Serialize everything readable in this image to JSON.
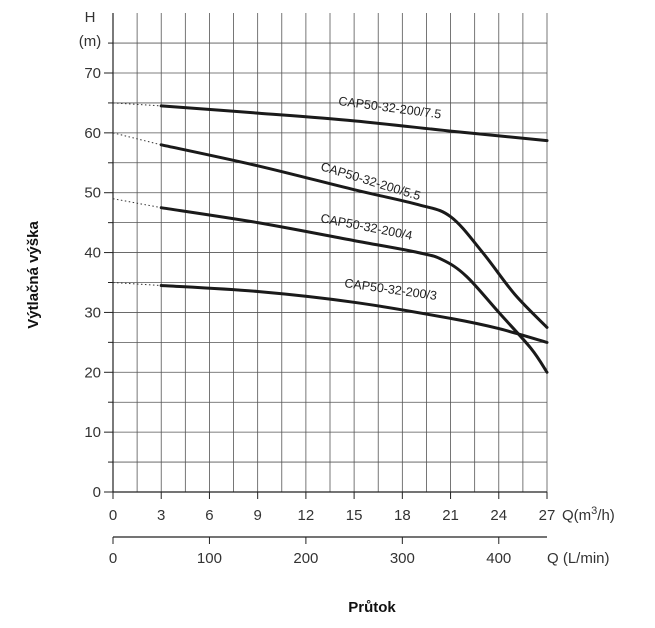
{
  "chart_data": {
    "type": "line",
    "y_unit_label": [
      "H",
      "(m)"
    ],
    "ylabel": "Výtlačná výška",
    "xlabel": "Průtok",
    "x_unit_label": "Q(m³/h)",
    "x2_unit_label": "Q (L/min)",
    "xlim": [
      0,
      27
    ],
    "ylim": [
      0,
      70
    ],
    "x_ticks": [
      "0",
      "3",
      "6",
      "9",
      "12",
      "15",
      "18",
      "21",
      "24",
      "27"
    ],
    "y_ticks": [
      "0",
      "10",
      "20",
      "30",
      "40",
      "50",
      "60",
      "70"
    ],
    "x2_ticks": [
      "0",
      "100",
      "200",
      "300",
      "400"
    ],
    "grid": true,
    "colors": {
      "curve": "#1a1a1a",
      "grid": "#555555",
      "text": "#333333"
    },
    "series": [
      {
        "name": "CAP50-32-200/7.5",
        "shutoff_head": 65,
        "points": [
          [
            3,
            64.5
          ],
          [
            9,
            63.3
          ],
          [
            15,
            62
          ],
          [
            21,
            60.3
          ],
          [
            27,
            58.7
          ]
        ]
      },
      {
        "name": "CAP50-32-200/5.5",
        "shutoff_head": 60,
        "points": [
          [
            3,
            58
          ],
          [
            9,
            54.5
          ],
          [
            15,
            50.5
          ],
          [
            19,
            48
          ],
          [
            21,
            46
          ],
          [
            23,
            40
          ],
          [
            25,
            33
          ],
          [
            27,
            27.5
          ]
        ]
      },
      {
        "name": "CAP50-32-200/4",
        "shutoff_head": 49,
        "points": [
          [
            3,
            47.5
          ],
          [
            9,
            45
          ],
          [
            15,
            42
          ],
          [
            19,
            40
          ],
          [
            20.5,
            38.8
          ],
          [
            22,
            36
          ],
          [
            24,
            30
          ],
          [
            26,
            24
          ],
          [
            27,
            20
          ]
        ]
      },
      {
        "name": "CAP50-32-200/3",
        "shutoff_head": 35,
        "points": [
          [
            3,
            34.5
          ],
          [
            9,
            33.5
          ],
          [
            15,
            31.7
          ],
          [
            21,
            29
          ],
          [
            24,
            27.3
          ],
          [
            27,
            25
          ]
        ]
      }
    ]
  }
}
